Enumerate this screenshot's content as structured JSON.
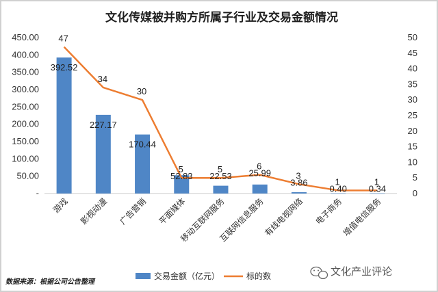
{
  "chart_data": {
    "type": "bar",
    "title": "文化传媒被并购方所属子行业及交易金额情况",
    "categories": [
      "游戏",
      "影视动漫",
      "广告营销",
      "平面媒体",
      "移动互联网服务",
      "互联网信息服务",
      "有线电视网络",
      "电子商务",
      "增值电信服务"
    ],
    "series": [
      {
        "name": "交易金额（亿元）",
        "type": "bar",
        "axis": "left",
        "values": [
          392.52,
          227.17,
          170.44,
          52.83,
          22.53,
          25.99,
          3.86,
          0.4,
          0.34
        ],
        "labels": [
          "392.52",
          "227.17",
          "170.44",
          "52.83",
          "22.53",
          "25.99",
          "3.86",
          "0.40",
          "0.34"
        ],
        "color": "#4f86c6"
      },
      {
        "name": "标的数",
        "type": "line",
        "axis": "right",
        "values": [
          47,
          34,
          30,
          5,
          5,
          6,
          3,
          1,
          1
        ],
        "labels": [
          "47",
          "34",
          "30",
          "5",
          "5",
          "6",
          "3",
          "1",
          "1"
        ],
        "color": "#ed7d31"
      }
    ],
    "y_left": {
      "ylim": [
        0,
        450
      ],
      "ticks": [
        "-",
        "50.00",
        "100.00",
        "150.00",
        "200.00",
        "250.00",
        "300.00",
        "350.00",
        "400.00",
        "450.00"
      ]
    },
    "y_right": {
      "ylim": [
        0,
        50
      ],
      "ticks": [
        "0",
        "5",
        "10",
        "15",
        "20",
        "25",
        "30",
        "35",
        "40",
        "45",
        "50"
      ]
    },
    "grid": false,
    "legend_position": "bottom"
  },
  "footer": {
    "source": "数据来源：根据公司公告整理",
    "watermark": "文化产业评论",
    "watermark_icon": "wechat-icon"
  }
}
